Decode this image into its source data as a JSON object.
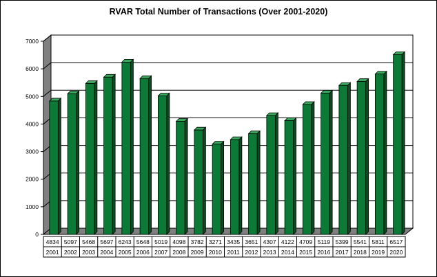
{
  "chart_data": {
    "type": "bar",
    "title": "RVAR Total Number of Transactions (Over 2001-2020)",
    "xlabel": "",
    "ylabel": "",
    "ylim": [
      0,
      7000
    ],
    "yticks": [
      0,
      1000,
      2000,
      3000,
      4000,
      5000,
      6000,
      7000
    ],
    "grid": true,
    "legend": "none",
    "style": "3d",
    "categories": [
      "2001",
      "2002",
      "2003",
      "2004",
      "2005",
      "2006",
      "2007",
      "2008",
      "2009",
      "2010",
      "2011",
      "2012",
      "2013",
      "2014",
      "2015",
      "2016",
      "2017",
      "2018",
      "2019",
      "2020"
    ],
    "series": [
      {
        "values": [
          4834,
          5097,
          5468,
          5697,
          6243,
          5648,
          5019,
          4098,
          3782,
          3271,
          3435,
          3651,
          4307,
          4122,
          4709,
          5119,
          5399,
          5541,
          5811,
          6517
        ]
      }
    ],
    "data_table": true,
    "colors": {
      "bar_front": "#0b7a36",
      "bar_side": "#064d20",
      "bar_top": "#3aa85c",
      "wall": "#ffffff",
      "floor": "#808080"
    }
  }
}
